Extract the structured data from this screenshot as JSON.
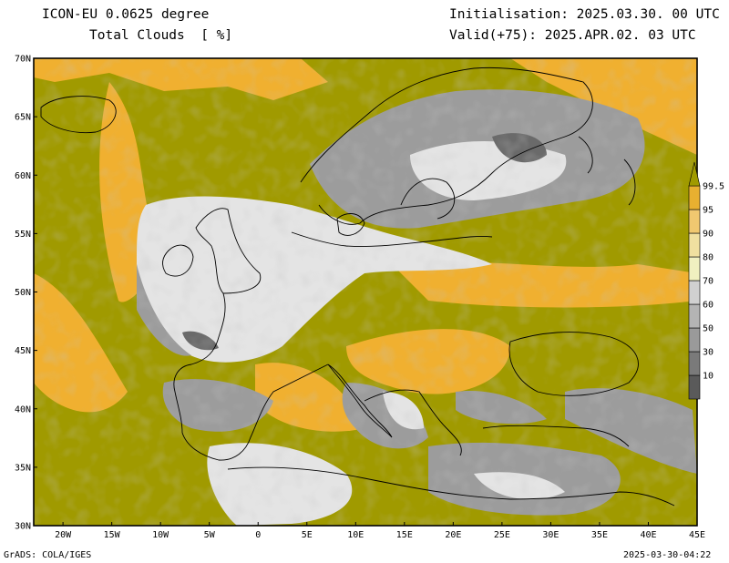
{
  "header": {
    "model_line": "ICON-EU 0.0625 degree",
    "variable_line": "Total Clouds  [ %]",
    "init_line": "Initialisation: 2025.03.30. 00 UTC",
    "valid_line": "Valid(+75): 2025.APR.02. 03 UTC"
  },
  "map": {
    "extent": {
      "lon": [
        -23,
        45
      ],
      "lat": [
        30,
        70
      ]
    },
    "lat_labels": [
      "30N",
      "35N",
      "40N",
      "45N",
      "50N",
      "55N",
      "60N",
      "65N",
      "70N"
    ],
    "lat_values": [
      30,
      35,
      40,
      45,
      50,
      55,
      60,
      65,
      70
    ],
    "lon_labels": [
      "20W",
      "15W",
      "10W",
      "5W",
      "0",
      "5E",
      "10E",
      "15E",
      "20E",
      "25E",
      "30E",
      "35E",
      "40E",
      "45E"
    ],
    "lon_values": [
      -20,
      -15,
      -10,
      -5,
      0,
      5,
      10,
      15,
      20,
      25,
      30,
      35,
      40,
      45
    ],
    "colors": {
      "olive": "#a09a00",
      "light_grey": "#e4e4e4",
      "mid_grey": "#9c9c9c",
      "dark_grey": "#6a6a6a",
      "gold": "#f0b030",
      "coast": "#000000"
    }
  },
  "colorbar": {
    "labels": [
      "10",
      "30",
      "50",
      "60",
      "70",
      "80",
      "90",
      "95",
      "99.5"
    ],
    "colors": [
      "#5a5a5a",
      "#7a7a7a",
      "#9a9a9a",
      "#b4b4b4",
      "#d0d0d0",
      "#f0f0c0",
      "#f0e0a0",
      "#f0c870",
      "#e8b030",
      "#a09a00"
    ]
  },
  "footer": {
    "left": "GrADS: COLA/IGES",
    "right": "2025-03-30-04:22"
  }
}
